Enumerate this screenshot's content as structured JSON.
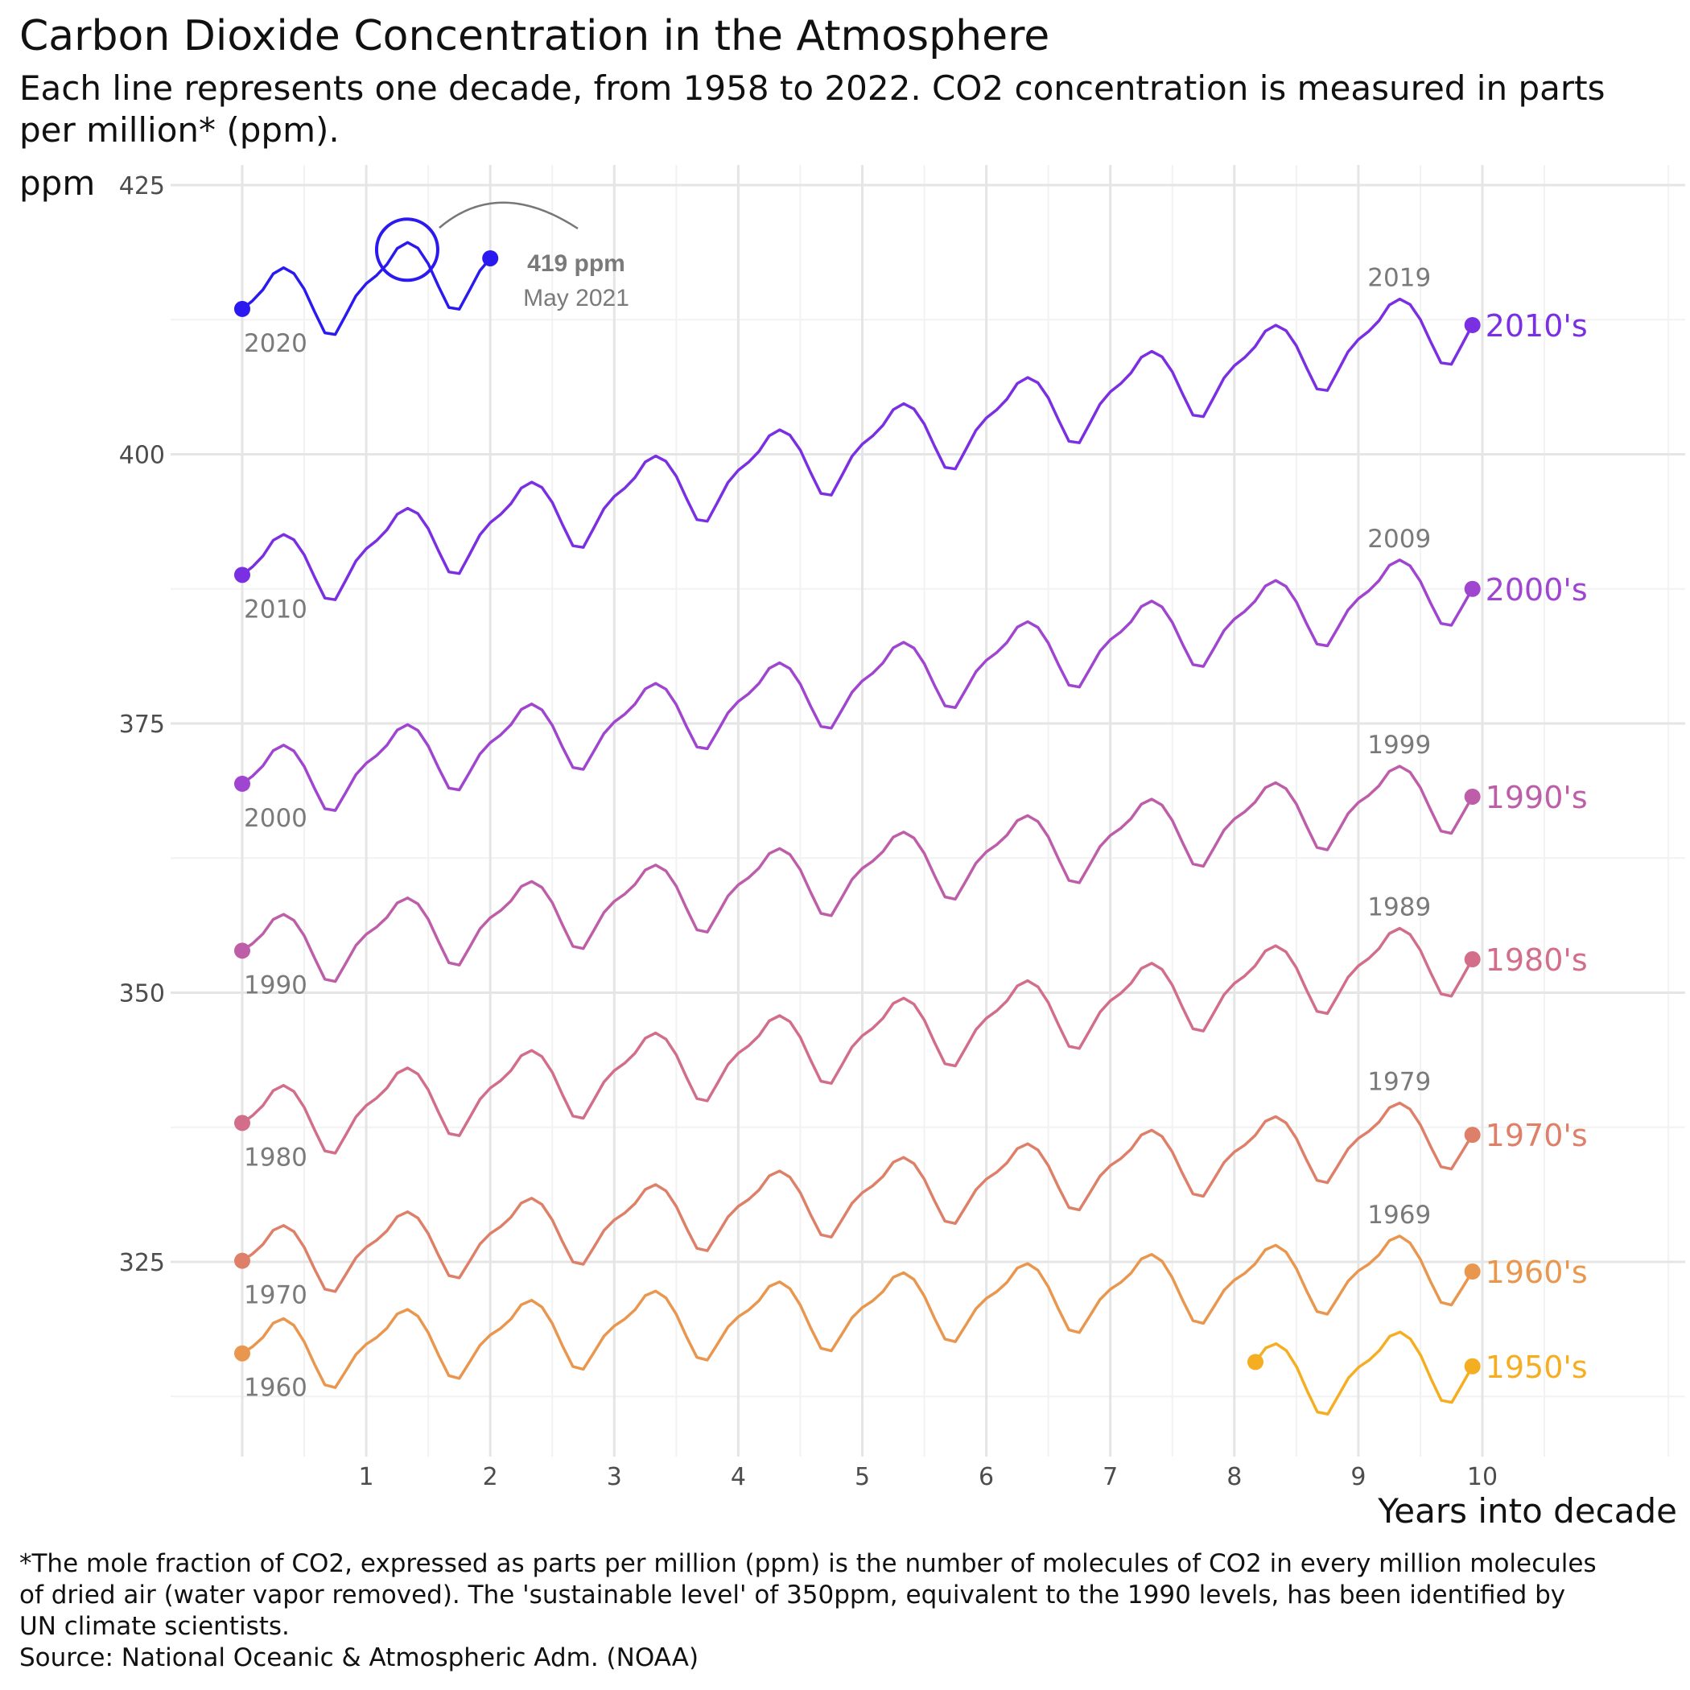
{
  "title": "Carbon Dioxide Concentration in the Atmosphere",
  "subtitle": "Each line represents one decade, from 1958 to 2022. CO2 concentration is measured in parts per million* (ppm).",
  "caption_lines": [
    "*The mole fraction of CO2, expressed as parts per million (ppm) is the number of molecules of CO2 in every million molecules",
    "of dried air (water vapor removed). The 'sustainable level' of 350ppm, equivalent to the 1990 levels, has been identified by",
    "UN climate scientists.",
    "Source: National Oceanic & Atmospheric Adm. (NOAA)"
  ],
  "chart_data": {
    "type": "line",
    "xlabel": "Years into decade",
    "ylabel": "ppm",
    "x_ticks": [
      1,
      2,
      3,
      4,
      5,
      6,
      7,
      8,
      9,
      10
    ],
    "y_ticks": [
      325,
      350,
      375,
      400,
      425
    ],
    "xlim": [
      -0.1,
      11.5
    ],
    "ylim": [
      307,
      425.5
    ],
    "grid": true,
    "series": [
      {
        "name": "1950's",
        "color": "#F5AE22",
        "start_year": 1958,
        "start_label": "",
        "end_label": "",
        "x_start": 8.17,
        "x_end": 9.92,
        "y_start": 315.7,
        "y_end": 315.3,
        "peak_amp": 3.3,
        "trough_amp": 3.6
      },
      {
        "name": "1960's",
        "color": "#E9974F",
        "start_year": 1960,
        "start_label": "1960",
        "end_label": "1969",
        "x_start": 0,
        "x_end": 9.92,
        "y_start": 316.5,
        "y_end": 324.1,
        "peak_amp": 3.3,
        "trough_amp": 3.3
      },
      {
        "name": "1970's",
        "color": "#DE8069",
        "start_year": 1970,
        "start_label": "1970",
        "end_label": "1979",
        "x_start": 0,
        "x_end": 9.92,
        "y_start": 325.1,
        "y_end": 336.8,
        "peak_amp": 3.2,
        "trough_amp": 3.3
      },
      {
        "name": "1980's",
        "color": "#D26E8A",
        "start_year": 1980,
        "start_label": "1980",
        "end_label": "1989",
        "x_start": 0,
        "x_end": 9.92,
        "y_start": 337.9,
        "y_end": 353.1,
        "peak_amp": 3.3,
        "trough_amp": 3.5
      },
      {
        "name": "1990's",
        "color": "#BE5EA8",
        "start_year": 1990,
        "start_label": "1990",
        "end_label": "1999",
        "x_start": 0,
        "x_end": 9.92,
        "y_start": 353.9,
        "y_end": 368.2,
        "peak_amp": 3.2,
        "trough_amp": 3.5
      },
      {
        "name": "2000's",
        "color": "#9F45D0",
        "start_year": 2000,
        "start_label": "2000",
        "end_label": "2009",
        "x_start": 0,
        "x_end": 9.92,
        "y_start": 369.4,
        "y_end": 387.5,
        "peak_amp": 3.3,
        "trough_amp": 3.4
      },
      {
        "name": "2010's",
        "color": "#7A2FE2",
        "start_year": 2010,
        "start_label": "2010",
        "end_label": "2019",
        "x_start": 0,
        "x_end": 9.92,
        "y_start": 388.8,
        "y_end": 412.0,
        "peak_amp": 3.3,
        "trough_amp": 3.6
      },
      {
        "name": "",
        "color": "#2A1AEF",
        "start_year": 2020,
        "start_label": "2020",
        "end_label": "",
        "x_start": 0,
        "x_end": 2.0,
        "y_start": 413.5,
        "y_end": 418.2,
        "peak_amp": 3.4,
        "trough_amp": 3.6
      }
    ],
    "annotation": {
      "value": "419 ppm",
      "date": "May 2021",
      "x": 1.33,
      "y": 419.0
    }
  }
}
